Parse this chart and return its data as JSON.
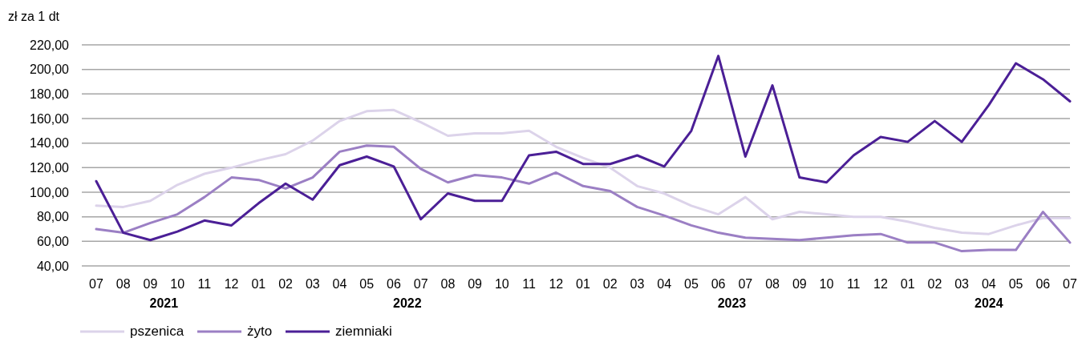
{
  "chart_data": {
    "type": "line",
    "ylabel": "zł za 1 dt",
    "categories": [
      "07",
      "08",
      "09",
      "10",
      "11",
      "12",
      "01",
      "02",
      "03",
      "04",
      "05",
      "06",
      "07",
      "08",
      "09",
      "10",
      "11",
      "12",
      "01",
      "02",
      "03",
      "04",
      "05",
      "06",
      "07",
      "08",
      "09",
      "10",
      "11",
      "12",
      "01",
      "02",
      "03",
      "04",
      "05",
      "06",
      "07"
    ],
    "annotations": [
      "2021",
      "2022",
      "2023",
      "2024"
    ],
    "series": [
      {
        "name": "pszenica",
        "color": "#dcd3ea",
        "values": [
          89,
          88,
          93,
          106,
          115,
          120,
          126,
          131,
          142,
          158,
          166,
          167,
          157,
          146,
          148,
          148,
          150,
          137,
          128,
          120,
          105,
          99,
          89,
          82,
          96,
          78,
          84,
          82,
          80,
          80,
          76,
          71,
          67,
          66,
          73,
          79,
          79
        ]
      },
      {
        "name": "żyto",
        "color": "#9b7fc4",
        "values": [
          70,
          67,
          75,
          82,
          96,
          112,
          110,
          103,
          112,
          133,
          138,
          137,
          119,
          108,
          114,
          112,
          107,
          116,
          105,
          101,
          88,
          81,
          73,
          67,
          63,
          62,
          61,
          63,
          65,
          66,
          59,
          59,
          52,
          53,
          53,
          84,
          59
        ]
      },
      {
        "name": "ziemniaki",
        "color": "#4b1f96",
        "values": [
          109,
          67,
          61,
          68,
          77,
          73,
          91,
          107,
          94,
          122,
          129,
          121,
          78,
          99,
          93,
          93,
          130,
          133,
          123,
          123,
          130,
          121,
          150,
          211,
          129,
          187,
          112,
          108,
          130,
          145,
          141,
          158,
          141,
          171,
          205,
          192,
          174
        ]
      }
    ],
    "ylim": [
      40,
      220
    ],
    "yticks": [
      {
        "value": 40,
        "label": "40,00"
      },
      {
        "value": 60,
        "label": "60,00"
      },
      {
        "value": 80,
        "label": "80,00"
      },
      {
        "value": 100,
        "label": "100,00"
      },
      {
        "value": 120,
        "label": "120,00"
      },
      {
        "value": 140,
        "label": "140,00"
      },
      {
        "value": 160,
        "label": "160,00"
      },
      {
        "value": 180,
        "label": "180,00"
      },
      {
        "value": 200,
        "label": "200,00"
      },
      {
        "value": 220,
        "label": "220,00"
      }
    ],
    "grid": "y",
    "legend": "bottom left",
    "line_style": "solid"
  }
}
